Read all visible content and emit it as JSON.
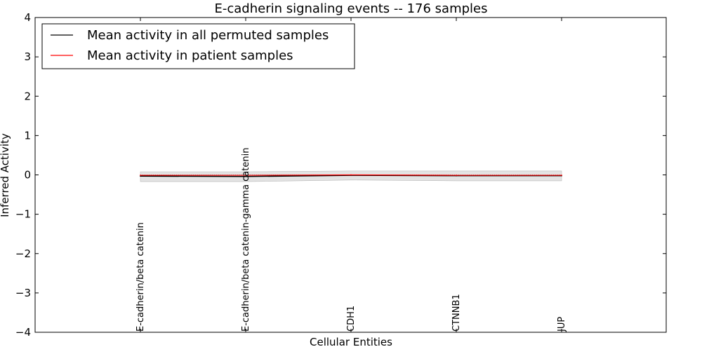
{
  "chart_data": {
    "type": "line",
    "title": "E-cadherin signaling events -- 176 samples",
    "xlabel": "Cellular Entities",
    "ylabel": "Inferred Activity",
    "ylim": [
      -4,
      4
    ],
    "yticks": [
      4,
      3,
      2,
      1,
      0,
      -1,
      -2,
      -3,
      -4
    ],
    "ytick_labels": [
      "4",
      "3",
      "2",
      "1",
      "0",
      "−1",
      "−2",
      "−3",
      "−4"
    ],
    "categories": [
      "E-cadherin/beta catenin",
      "E-cadherin/beta catenin-gamma catenin",
      "CDH1",
      "CTNNB1",
      "JUP"
    ],
    "legend_position": "top-left",
    "series": [
      {
        "name": "Mean activity in all permuted samples",
        "color": "#000000",
        "values": [
          -0.03,
          -0.04,
          -0.01,
          -0.02,
          -0.02
        ],
        "band_low": [
          -0.17,
          -0.17,
          -0.13,
          -0.15,
          -0.15
        ],
        "band_high": [
          0.08,
          0.08,
          0.1,
          0.1,
          0.1
        ]
      },
      {
        "name": "Mean activity in patient samples",
        "color": "#ff0000",
        "values": [
          -0.01,
          -0.01,
          0.0,
          -0.01,
          -0.01
        ]
      }
    ]
  }
}
